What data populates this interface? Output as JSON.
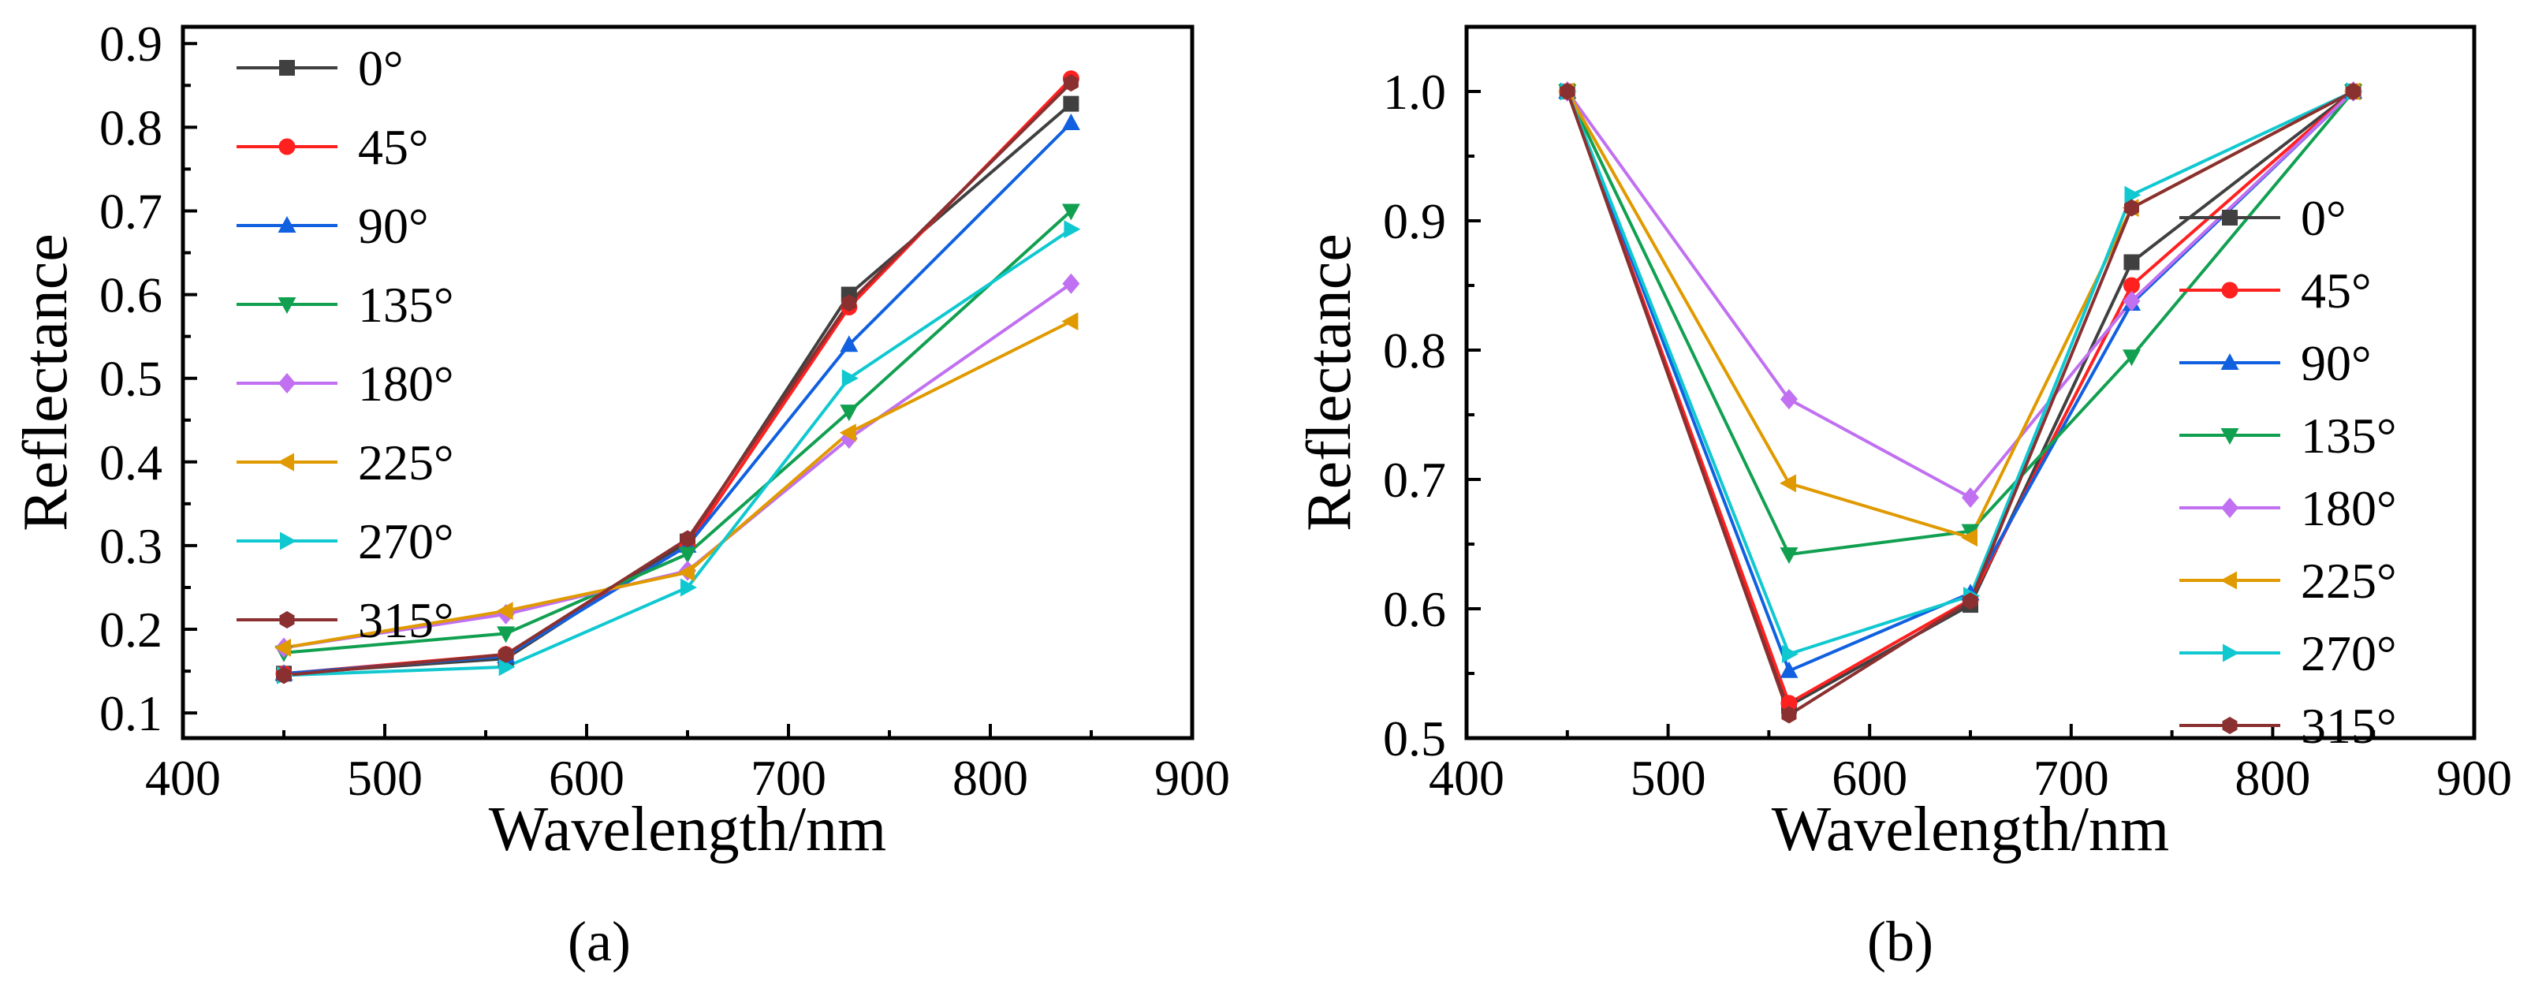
{
  "series_styles": [
    {
      "name": "0°",
      "color": "#404040",
      "marker": "square"
    },
    {
      "name": "45°",
      "color": "#ff2020",
      "marker": "circle"
    },
    {
      "name": "90°",
      "color": "#1060e0",
      "marker": "triangle-up"
    },
    {
      "name": "135°",
      "color": "#10a050",
      "marker": "triangle-down"
    },
    {
      "name": "180°",
      "color": "#c070f0",
      "marker": "diamond"
    },
    {
      "name": "225°",
      "color": "#e09a00",
      "marker": "triangle-left"
    },
    {
      "name": "270°",
      "color": "#10c8d0",
      "marker": "triangle-right"
    },
    {
      "name": "315°",
      "color": "#8a3030",
      "marker": "hexagon"
    }
  ],
  "chart_data": [
    {
      "type": "line",
      "panel_label": "(a)",
      "xlabel": "Wavelength/nm",
      "ylabel": "Reflectance",
      "xlim": [
        400,
        900
      ],
      "ylim": [
        0.07,
        0.92
      ],
      "xticks": [
        400,
        500,
        600,
        700,
        800,
        900
      ],
      "xtick_labels": [
        "400",
        "500",
        "600",
        "700",
        "800",
        "900"
      ],
      "yticks": [
        0.1,
        0.2,
        0.3,
        0.4,
        0.5,
        0.6,
        0.7,
        0.8,
        0.9
      ],
      "ytick_labels": [
        "0.1",
        "0.2",
        "0.3",
        "0.4",
        "0.5",
        "0.6",
        "0.7",
        "0.8",
        "0.9"
      ],
      "legend": "top-left",
      "x": [
        450,
        560,
        650,
        730,
        840
      ],
      "series": [
        {
          "name": "0°",
          "values": [
            0.147,
            0.165,
            0.305,
            0.6,
            0.828
          ]
        },
        {
          "name": "45°",
          "values": [
            0.147,
            0.17,
            0.3,
            0.585,
            0.858
          ]
        },
        {
          "name": "90°",
          "values": [
            0.147,
            0.168,
            0.3,
            0.54,
            0.805
          ]
        },
        {
          "name": "135°",
          "values": [
            0.172,
            0.195,
            0.29,
            0.46,
            0.7
          ]
        },
        {
          "name": "180°",
          "values": [
            0.178,
            0.218,
            0.27,
            0.428,
            0.613
          ]
        },
        {
          "name": "225°",
          "values": [
            0.178,
            0.222,
            0.268,
            0.435,
            0.568
          ]
        },
        {
          "name": "270°",
          "values": [
            0.145,
            0.155,
            0.25,
            0.5,
            0.678
          ]
        },
        {
          "name": "315°",
          "values": [
            0.145,
            0.17,
            0.308,
            0.59,
            0.853
          ]
        }
      ]
    },
    {
      "type": "line",
      "panel_label": "(b)",
      "xlabel": "Wavelength/nm",
      "ylabel": "Reflectance",
      "xlim": [
        400,
        900
      ],
      "ylim": [
        0.5,
        1.05
      ],
      "xticks": [
        400,
        500,
        600,
        700,
        800,
        900
      ],
      "xtick_labels": [
        "400",
        "500",
        "600",
        "700",
        "800",
        "900"
      ],
      "yticks": [
        0.5,
        0.6,
        0.7,
        0.8,
        0.9,
        1.0
      ],
      "ytick_labels": [
        "0.5",
        "0.6",
        "0.7",
        "0.8",
        "0.9",
        "1.0"
      ],
      "legend": "right",
      "x": [
        450,
        560,
        650,
        730,
        840
      ],
      "series": [
        {
          "name": "0°",
          "values": [
            1.0,
            0.525,
            0.603,
            0.868,
            1.0
          ]
        },
        {
          "name": "45°",
          "values": [
            1.0,
            0.527,
            0.607,
            0.85,
            1.0
          ]
        },
        {
          "name": "90°",
          "values": [
            1.0,
            0.552,
            0.612,
            0.836,
            1.0
          ]
        },
        {
          "name": "135°",
          "values": [
            1.0,
            0.642,
            0.66,
            0.795,
            1.0
          ]
        },
        {
          "name": "180°",
          "values": [
            1.0,
            0.762,
            0.686,
            0.838,
            1.0
          ]
        },
        {
          "name": "225°",
          "values": [
            1.0,
            0.697,
            0.655,
            0.91,
            1.0
          ]
        },
        {
          "name": "270°",
          "values": [
            1.0,
            0.565,
            0.61,
            0.92,
            1.0
          ]
        },
        {
          "name": "315°",
          "values": [
            1.0,
            0.518,
            0.606,
            0.91,
            1.0
          ]
        }
      ]
    }
  ]
}
